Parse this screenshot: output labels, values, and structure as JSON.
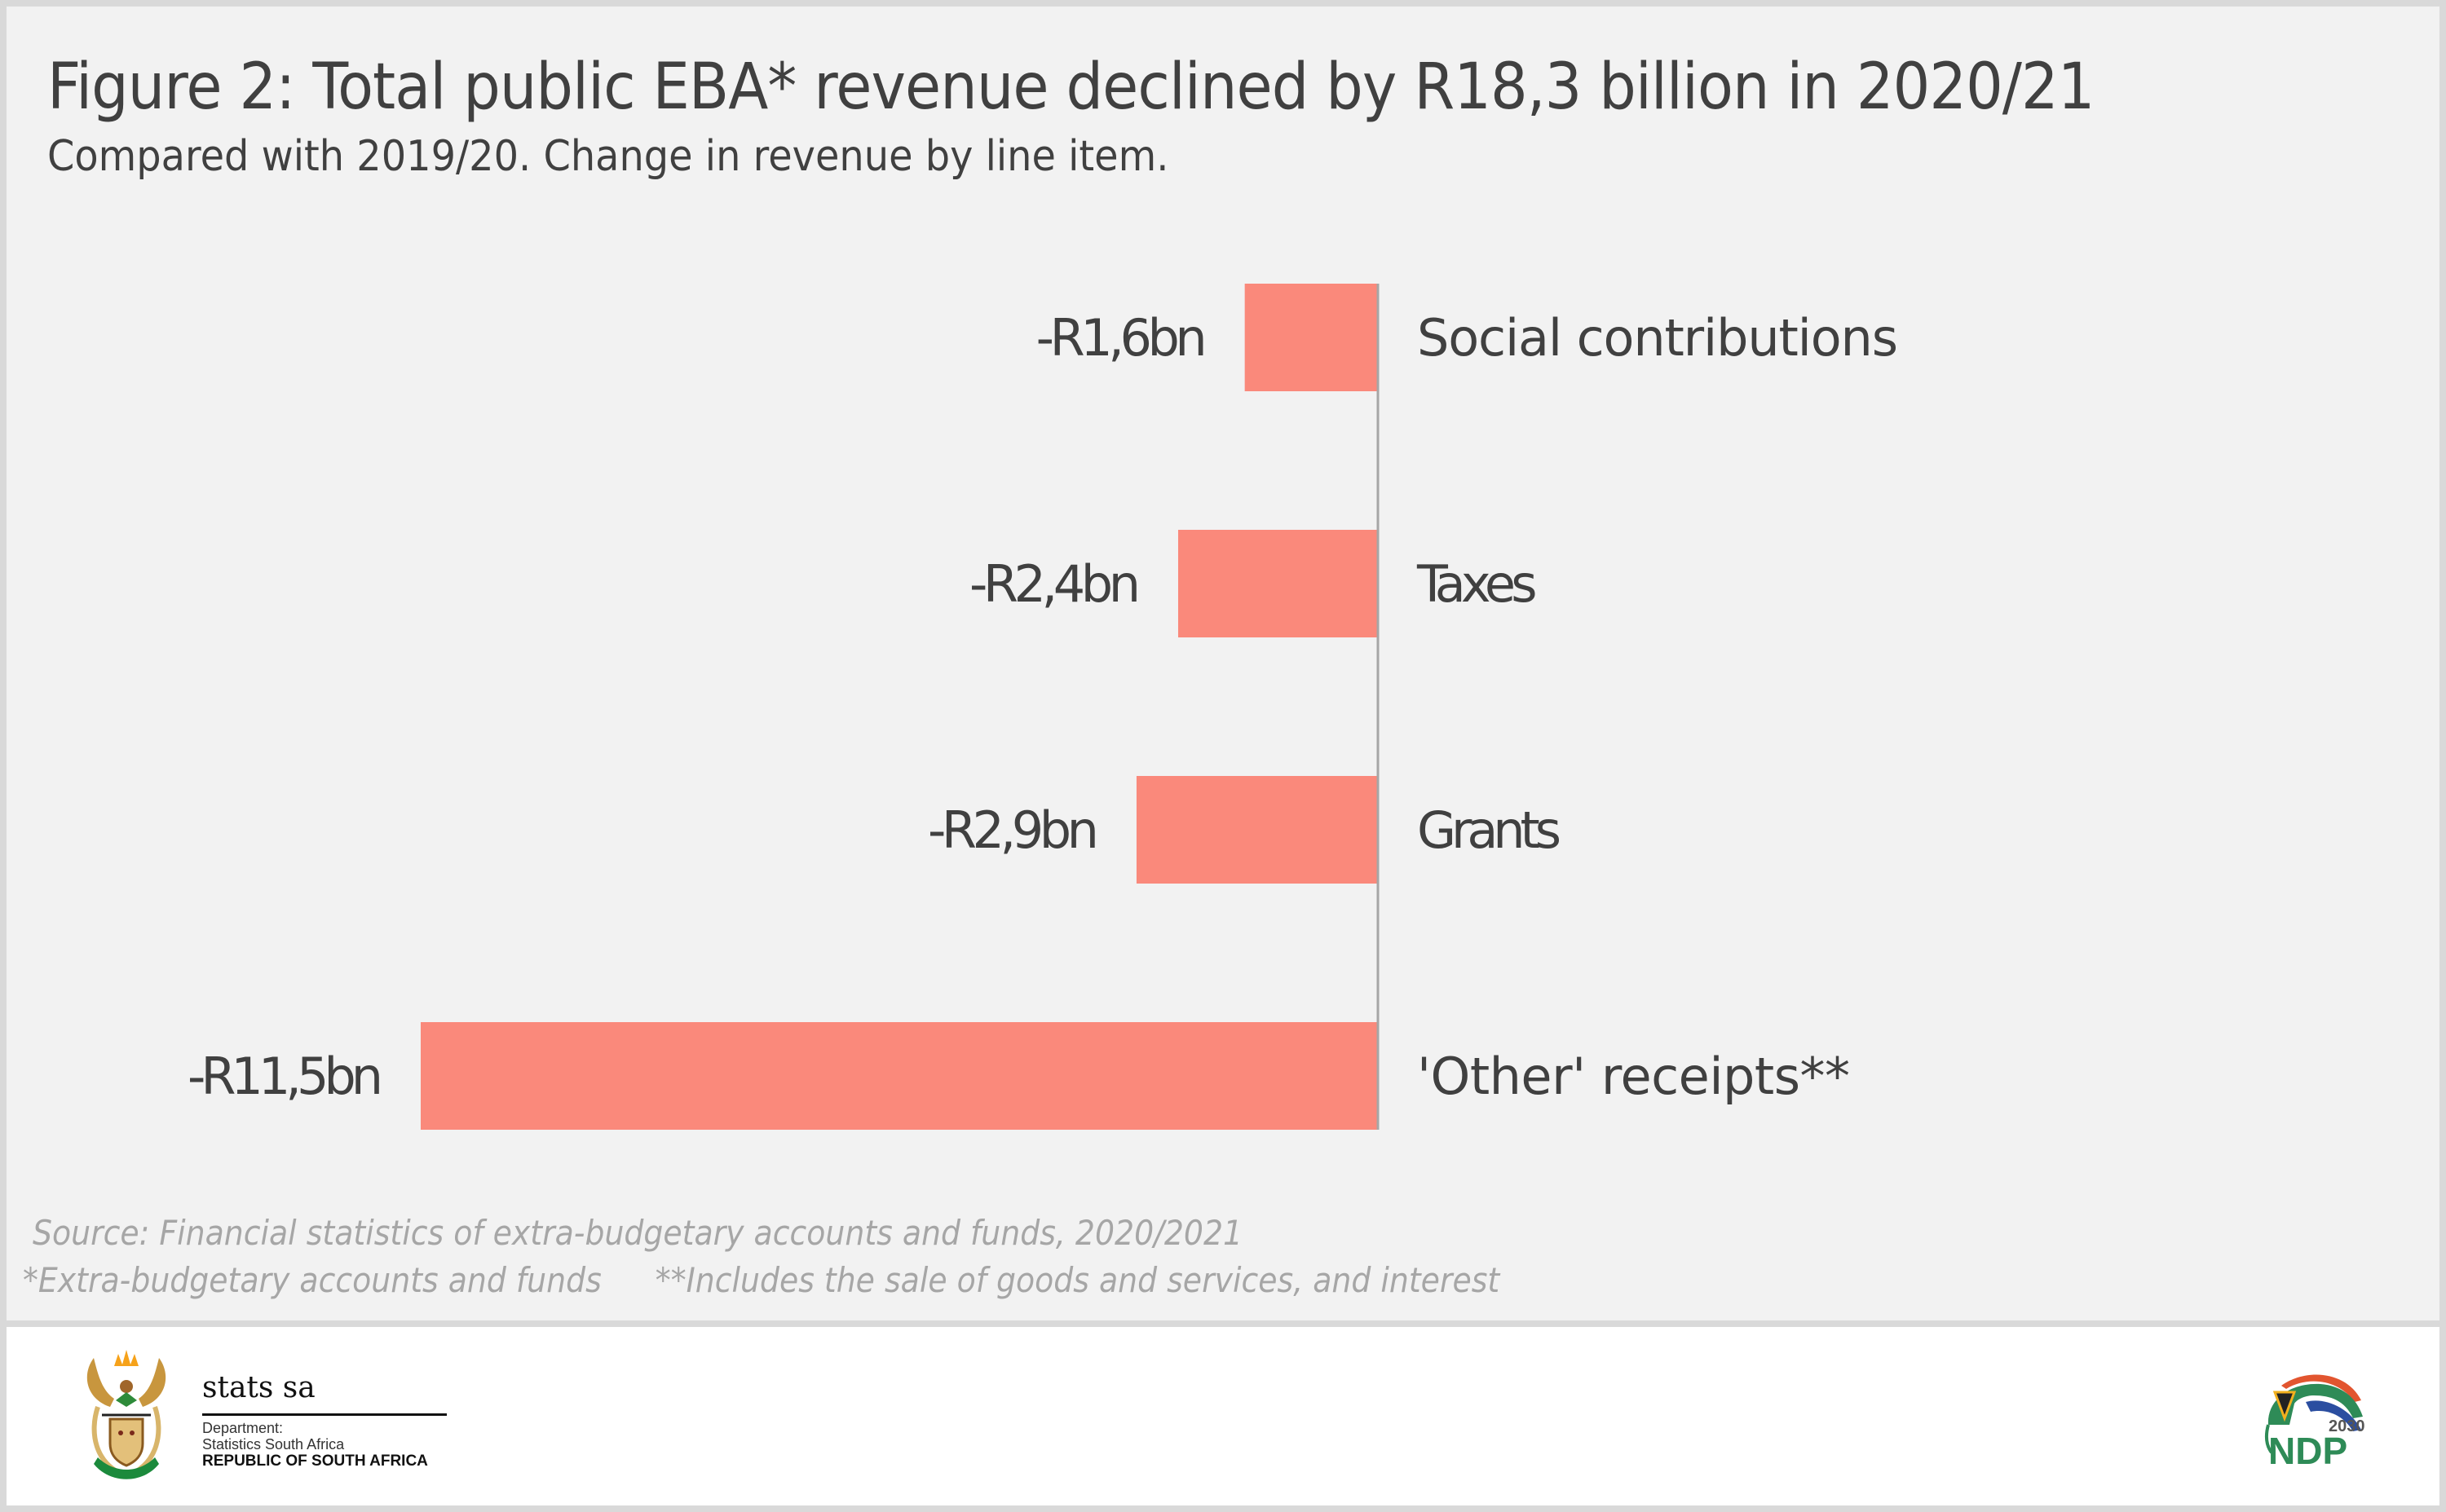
{
  "header": {
    "title": "Figure 2: Total public EBA* revenue declined by R18,3 billion in 2020/21",
    "subtitle": "Compared with 2019/20. Change in revenue by line item."
  },
  "chart_data": {
    "type": "bar",
    "orientation": "horizontal",
    "title": "Figure 2: Total public EBA* revenue declined by R18,3 billion in 2020/21",
    "subtitle": "Compared with 2019/20. Change in revenue by line item.",
    "xlabel": "",
    "ylabel": "",
    "units": "R billion",
    "categories": [
      "Social contributions",
      "Taxes",
      "Grants",
      "'Other' receipts**"
    ],
    "values": [
      -1.6,
      -2.4,
      -2.9,
      -11.5
    ],
    "data_labels": [
      "-R1,6bn",
      "-R2,4bn",
      "-R2,9bn",
      "-R11,5bn"
    ],
    "xlim": [
      -11.5,
      0
    ],
    "grid": false,
    "legend": "none",
    "bar_color": "#fa897b",
    "axis_color": "#a6a6a6",
    "text_color": "#404040"
  },
  "footer": {
    "source": "Source: Financial statistics of extra-budgetary accounts and funds, 2020/2021",
    "note_1": "*Extra-budgetary accounts and funds",
    "note_2": "**Includes the sale of goods and services, and interest"
  },
  "logos": {
    "statssa": {
      "name": "stats sa",
      "line1": "Department:",
      "line2": "Statistics South Africa",
      "line3": "REPUBLIC OF SOUTH AFRICA"
    },
    "ndp": {
      "year": "2030",
      "name": "NDP"
    }
  }
}
